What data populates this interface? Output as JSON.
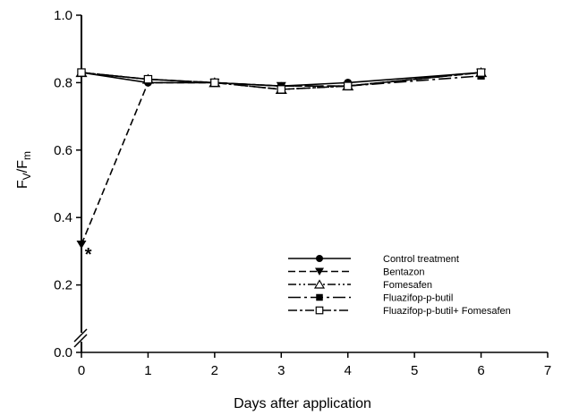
{
  "chart_data": {
    "type": "line",
    "xlabel": "Days after application",
    "ylabel": {
      "base": "F",
      "sub1": "V",
      "sep": "/",
      "base2": "F",
      "sub2": "m"
    },
    "xlim": [
      0,
      7
    ],
    "ylim": [
      0.0,
      1.0
    ],
    "y_axis_break": true,
    "x_ticks": [
      0,
      1,
      2,
      3,
      4,
      5,
      6,
      7
    ],
    "y_ticks": [
      0.0,
      0.2,
      0.4,
      0.6,
      0.8,
      1.0
    ],
    "y_tick_labels": [
      "0.0",
      "0.2",
      "0.4",
      "0.6",
      "0.8",
      "1.0"
    ],
    "grid": false,
    "legend_position": "lower-right",
    "annotation": {
      "text": "*",
      "x": 0.05,
      "y": 0.31
    },
    "series": [
      {
        "name": "Control treatment",
        "marker": "circle-filled",
        "dash": "solid",
        "x": [
          0,
          1,
          2,
          3,
          4,
          6
        ],
        "y": [
          0.83,
          0.8,
          0.8,
          0.79,
          0.8,
          0.83
        ]
      },
      {
        "name": "Bentazon",
        "marker": "triangle-down-filled",
        "dash": "dashed",
        "x": [
          0,
          1,
          2,
          3,
          4,
          6
        ],
        "y": [
          0.32,
          0.8,
          0.8,
          0.79,
          0.79,
          0.83
        ]
      },
      {
        "name": "Fomesafen",
        "marker": "triangle-up-open",
        "dash": "dash-dot-dot",
        "x": [
          0,
          1,
          2,
          3,
          4,
          6
        ],
        "y": [
          0.83,
          0.81,
          0.8,
          0.78,
          0.79,
          0.83
        ]
      },
      {
        "name": "Fluazifop-p-butil",
        "marker": "square-filled",
        "dash": "long-dash-dot",
        "x": [
          0,
          1,
          2,
          3,
          4,
          6
        ],
        "y": [
          0.83,
          0.81,
          0.8,
          0.79,
          0.79,
          0.82
        ]
      },
      {
        "name": "Fluazifop-p-butil+ Fomesafen",
        "marker": "square-open",
        "dash": "dash-dot",
        "x": [
          0,
          1,
          2,
          3,
          4,
          6
        ],
        "y": [
          0.83,
          0.81,
          0.8,
          0.78,
          0.79,
          0.83
        ]
      }
    ]
  }
}
